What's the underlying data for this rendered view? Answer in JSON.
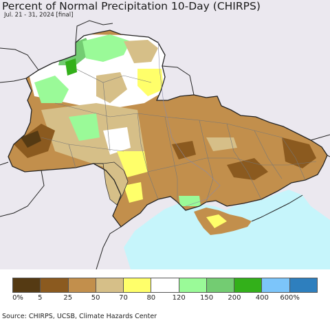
{
  "title": "Percent of Normal Precipitation 10-Day (CHIRPS)",
  "subtitle": "Jul. 21 - 31, 2024 [final]",
  "source": "Source: CHIRPS, UCSB, Climate Hazards Center",
  "colors": {
    "background_land": "#ebe8ef",
    "sea": "#c6f5fb",
    "border": "#222222",
    "admin_border": "#777777"
  },
  "legend": {
    "swatches": [
      {
        "color": "#553a13"
      },
      {
        "color": "#8b5a1f"
      },
      {
        "color": "#c28f4c"
      },
      {
        "color": "#d6bf88"
      },
      {
        "color": "#ffff6a"
      },
      {
        "color": "#ffffff"
      },
      {
        "color": "#9afa98"
      },
      {
        "color": "#73cc72"
      },
      {
        "color": "#33b01a"
      },
      {
        "color": "#7cc5fa"
      },
      {
        "color": "#2e7fbe"
      }
    ],
    "labels": [
      "0%",
      "5",
      "25",
      "50",
      "70",
      "80",
      "120",
      "150",
      "200",
      "400",
      "600%"
    ]
  }
}
